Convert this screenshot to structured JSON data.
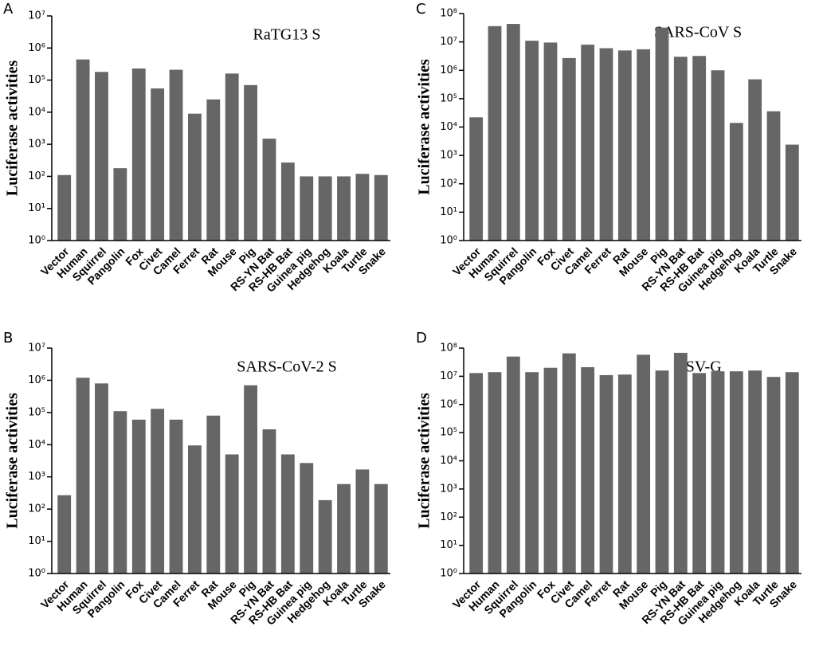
{
  "chart_data": [
    {
      "type": "bar",
      "panel": "A",
      "title": "RaTG13 S",
      "y_label": "Luciferase activities",
      "log_scale": true,
      "color": "#666666",
      "categories": [
        "Vector",
        "Human",
        "Squirrel",
        "Pangolin",
        "Fox",
        "Civet",
        "Camel",
        "Ferret",
        "Rat",
        "Mouse",
        "Pig",
        "RS-YN Bat",
        "RS-HB Bat",
        "Guinea pig",
        "Hedgehog",
        "Koala",
        "Turtle",
        "Snake"
      ],
      "values": [
        110,
        440000,
        180000,
        180,
        230000,
        55000,
        210000,
        9000,
        25000,
        160000,
        70000,
        1500,
        270,
        100,
        100,
        100,
        120,
        110
      ],
      "ylim": [
        1,
        10000000
      ],
      "yticks": [
        {
          "value": 1,
          "label": "10⁰"
        },
        {
          "value": 10,
          "label": "10¹"
        },
        {
          "value": 100,
          "label": "10²"
        },
        {
          "value": 1000,
          "label": "10³"
        },
        {
          "value": 10000,
          "label": "10⁴"
        },
        {
          "value": 100000,
          "label": "10⁵"
        },
        {
          "value": 1000000,
          "label": "10⁶"
        },
        {
          "value": 10000000,
          "label": "10⁷"
        }
      ]
    },
    {
      "type": "bar",
      "panel": "B",
      "title": "SARS-CoV-2 S",
      "y_label": "Luciferase activities",
      "log_scale": true,
      "color": "#666666",
      "categories": [
        "Vector",
        "Human",
        "Squirrel",
        "Pangolin",
        "Fox",
        "Civet",
        "Camel",
        "Ferret",
        "Rat",
        "Mouse",
        "Pig",
        "RS-YN Bat",
        "RS-HB Bat",
        "Guinea pig",
        "Hedgehog",
        "Koala",
        "Turtle",
        "Snake"
      ],
      "values": [
        270,
        1200000,
        800000,
        110000,
        60000,
        130000,
        60000,
        9500,
        80000,
        5000,
        700000,
        30000,
        5000,
        2700,
        190,
        600,
        1700,
        600
      ],
      "ylim": [
        1,
        10000000
      ],
      "yticks": [
        {
          "value": 1,
          "label": "10⁰"
        },
        {
          "value": 10,
          "label": "10¹"
        },
        {
          "value": 100,
          "label": "10²"
        },
        {
          "value": 1000,
          "label": "10³"
        },
        {
          "value": 10000,
          "label": "10⁴"
        },
        {
          "value": 100000,
          "label": "10⁵"
        },
        {
          "value": 1000000,
          "label": "10⁶"
        },
        {
          "value": 10000000,
          "label": "10⁷"
        }
      ]
    },
    {
      "type": "bar",
      "panel": "C",
      "title": "SARS-CoV S",
      "y_label": "Luciferase activities",
      "log_scale": true,
      "color": "#666666",
      "categories": [
        "Vector",
        "Human",
        "Squirrel",
        "Pangolin",
        "Fox",
        "Civet",
        "Camel",
        "Ferret",
        "Rat",
        "Mouse",
        "Pig",
        "RS-YN Bat",
        "RS-HB Bat",
        "Guinea pig",
        "Hedgehog",
        "Koala",
        "Turtle",
        "Snake"
      ],
      "values": [
        22000,
        36000000,
        43000000,
        11000000,
        9500000,
        2700000,
        8000000,
        6000000,
        5000000,
        5500000,
        32000000,
        3000000,
        3200000,
        1000000,
        14000,
        480000,
        36000,
        2400
      ],
      "ylim": [
        1,
        100000000
      ],
      "yticks": [
        {
          "value": 1,
          "label": "10⁰"
        },
        {
          "value": 10,
          "label": "10¹"
        },
        {
          "value": 100,
          "label": "10²"
        },
        {
          "value": 1000,
          "label": "10³"
        },
        {
          "value": 10000,
          "label": "10⁴"
        },
        {
          "value": 100000,
          "label": "10⁵"
        },
        {
          "value": 1000000,
          "label": "10⁶"
        },
        {
          "value": 10000000,
          "label": "10⁷"
        },
        {
          "value": 100000000,
          "label": "10⁸"
        }
      ]
    },
    {
      "type": "bar",
      "panel": "D",
      "title": "VSV-G",
      "y_label": "Luciferase activities",
      "log_scale": true,
      "color": "#666666",
      "categories": [
        "Vector",
        "Human",
        "Squirrel",
        "Pangolin",
        "Fox",
        "Civet",
        "Camel",
        "Ferret",
        "Rat",
        "Mouse",
        "Pig",
        "RS-YN Bat",
        "RS-HB Bat",
        "Guinea pig",
        "Hedgehog",
        "Koala",
        "Turtle",
        "Snake"
      ],
      "values": [
        13000000,
        14000000,
        50000000,
        14000000,
        20000000,
        65000000,
        21000000,
        11000000,
        11500000,
        58000000,
        16000000,
        68000000,
        13000000,
        15000000,
        15000000,
        16000000,
        9500000,
        14000000
      ],
      "ylim": [
        1,
        100000000
      ],
      "yticks": [
        {
          "value": 1,
          "label": "10⁰"
        },
        {
          "value": 10,
          "label": "10¹"
        },
        {
          "value": 100,
          "label": "10²"
        },
        {
          "value": 1000,
          "label": "10³"
        },
        {
          "value": 10000,
          "label": "10⁴"
        },
        {
          "value": 100000,
          "label": "10⁵"
        },
        {
          "value": 1000000,
          "label": "10⁶"
        },
        {
          "value": 10000000,
          "label": "10⁷"
        },
        {
          "value": 100000000,
          "label": "10⁸"
        }
      ]
    }
  ]
}
